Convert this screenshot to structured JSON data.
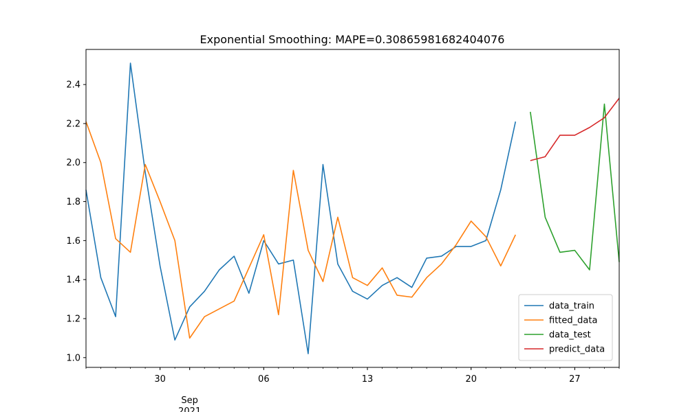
{
  "chart_data": {
    "type": "line",
    "title": "Exponential Smoothing: MAPE=0.30865981682404076",
    "xlabel": "",
    "ylabel": "",
    "x_range": [
      "2021-08-25",
      "2021-09-30"
    ],
    "ylim": [
      0.95,
      2.58
    ],
    "grid": false,
    "legend_position": "lower-right",
    "x_major_ticks": [
      {
        "date": "2021-08-30",
        "label": "30"
      },
      {
        "date": "2021-09-06",
        "label": "06"
      },
      {
        "date": "2021-09-13",
        "label": "13"
      },
      {
        "date": "2021-09-20",
        "label": "20"
      },
      {
        "date": "2021-09-27",
        "label": "27"
      }
    ],
    "x_month_label": {
      "date": "2021-09-01",
      "month": "Sep",
      "year": "2021"
    },
    "y_ticks": [
      1.0,
      1.2,
      1.4,
      1.6,
      1.8,
      2.0,
      2.2,
      2.4
    ],
    "series": [
      {
        "name": "data_train",
        "color": "#1f77b4",
        "points": [
          [
            "2021-08-25",
            1.86
          ],
          [
            "2021-08-26",
            1.41
          ],
          [
            "2021-08-27",
            1.21
          ],
          [
            "2021-08-28",
            2.51
          ],
          [
            "2021-08-29",
            1.95
          ],
          [
            "2021-08-30",
            1.47
          ],
          [
            "2021-08-31",
            1.09
          ],
          [
            "2021-09-01",
            1.26
          ],
          [
            "2021-09-02",
            1.34
          ],
          [
            "2021-09-03",
            1.45
          ],
          [
            "2021-09-04",
            1.52
          ],
          [
            "2021-09-05",
            1.33
          ],
          [
            "2021-09-06",
            1.6
          ],
          [
            "2021-09-07",
            1.48
          ],
          [
            "2021-09-08",
            1.5
          ],
          [
            "2021-09-09",
            1.02
          ],
          [
            "2021-09-10",
            1.99
          ],
          [
            "2021-09-11",
            1.48
          ],
          [
            "2021-09-12",
            1.34
          ],
          [
            "2021-09-13",
            1.3
          ],
          [
            "2021-09-14",
            1.37
          ],
          [
            "2021-09-15",
            1.41
          ],
          [
            "2021-09-16",
            1.36
          ],
          [
            "2021-09-17",
            1.51
          ],
          [
            "2021-09-18",
            1.52
          ],
          [
            "2021-09-19",
            1.57
          ],
          [
            "2021-09-20",
            1.57
          ],
          [
            "2021-09-21",
            1.6
          ],
          [
            "2021-09-22",
            1.86
          ],
          [
            "2021-09-23",
            2.21
          ]
        ]
      },
      {
        "name": "fitted_data",
        "color": "#ff7f0e",
        "points": [
          [
            "2021-08-25",
            2.21
          ],
          [
            "2021-08-26",
            2.0
          ],
          [
            "2021-08-27",
            1.61
          ],
          [
            "2021-08-28",
            1.54
          ],
          [
            "2021-08-29",
            1.99
          ],
          [
            "2021-08-30",
            1.8
          ],
          [
            "2021-08-31",
            1.6
          ],
          [
            "2021-09-01",
            1.1
          ],
          [
            "2021-09-02",
            1.21
          ],
          [
            "2021-09-03",
            1.25
          ],
          [
            "2021-09-04",
            1.29
          ],
          [
            "2021-09-05",
            1.46
          ],
          [
            "2021-09-06",
            1.63
          ],
          [
            "2021-09-07",
            1.22
          ],
          [
            "2021-09-08",
            1.96
          ],
          [
            "2021-09-09",
            1.55
          ],
          [
            "2021-09-10",
            1.39
          ],
          [
            "2021-09-11",
            1.72
          ],
          [
            "2021-09-12",
            1.41
          ],
          [
            "2021-09-13",
            1.37
          ],
          [
            "2021-09-14",
            1.46
          ],
          [
            "2021-09-15",
            1.32
          ],
          [
            "2021-09-16",
            1.31
          ],
          [
            "2021-09-17",
            1.41
          ],
          [
            "2021-09-18",
            1.48
          ],
          [
            "2021-09-19",
            1.58
          ],
          [
            "2021-09-20",
            1.7
          ],
          [
            "2021-09-21",
            1.62
          ],
          [
            "2021-09-22",
            1.47
          ],
          [
            "2021-09-23",
            1.63
          ]
        ]
      },
      {
        "name": "data_test",
        "color": "#2ca02c",
        "points": [
          [
            "2021-09-24",
            2.26
          ],
          [
            "2021-09-25",
            1.72
          ],
          [
            "2021-09-26",
            1.54
          ],
          [
            "2021-09-27",
            1.55
          ],
          [
            "2021-09-28",
            1.45
          ],
          [
            "2021-09-29",
            2.3
          ],
          [
            "2021-09-30",
            1.49
          ]
        ]
      },
      {
        "name": "predict_data",
        "color": "#d62728",
        "points": [
          [
            "2021-09-24",
            2.01
          ],
          [
            "2021-09-25",
            2.03
          ],
          [
            "2021-09-26",
            2.14
          ],
          [
            "2021-09-27",
            2.14
          ],
          [
            "2021-09-28",
            2.18
          ],
          [
            "2021-09-29",
            2.23
          ],
          [
            "2021-09-30",
            2.33
          ]
        ]
      }
    ]
  }
}
